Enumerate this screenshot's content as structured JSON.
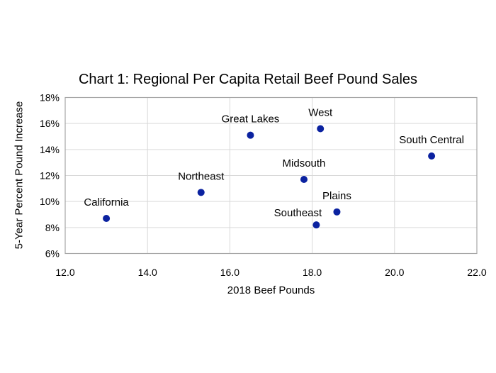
{
  "chart_data": {
    "type": "scatter",
    "title": "Chart 1: Regional Per Capita Retail Beef Pound Sales",
    "xlabel": "2018 Beef Pounds",
    "ylabel": "5-Year Percent Pound Increase",
    "xlim": [
      12,
      22
    ],
    "ylim": [
      6,
      18
    ],
    "grid": true,
    "legend": "none",
    "x_ticks": [
      {
        "v": 12,
        "label": "12.0"
      },
      {
        "v": 14,
        "label": "14.0"
      },
      {
        "v": 16,
        "label": "16.0"
      },
      {
        "v": 18,
        "label": "18.0"
      },
      {
        "v": 20,
        "label": "20.0"
      },
      {
        "v": 22,
        "label": "22.0"
      }
    ],
    "y_ticks": [
      {
        "v": 6,
        "label": "6%"
      },
      {
        "v": 8,
        "label": "8%"
      },
      {
        "v": 10,
        "label": "10%"
      },
      {
        "v": 12,
        "label": "12%"
      },
      {
        "v": 14,
        "label": "14%"
      },
      {
        "v": 16,
        "label": "16%"
      },
      {
        "v": 18,
        "label": "18%"
      }
    ],
    "points": [
      {
        "region": "California",
        "x": 13.0,
        "y": 8.7
      },
      {
        "region": "Northeast",
        "x": 15.3,
        "y": 10.7
      },
      {
        "region": "Great Lakes",
        "x": 16.5,
        "y": 15.1
      },
      {
        "region": "West",
        "x": 18.2,
        "y": 15.6
      },
      {
        "region": "Midsouth",
        "x": 17.8,
        "y": 11.7
      },
      {
        "region": "Southeast",
        "x": 18.1,
        "y": 8.2,
        "label_dx": -26,
        "label_dy": -12
      },
      {
        "region": "Plains",
        "x": 18.6,
        "y": 9.2
      },
      {
        "region": "South Central",
        "x": 20.9,
        "y": 13.5
      }
    ],
    "colors": {
      "dot": "#0b22a0",
      "gridline": "#d9d9d9",
      "plot_border": "#a6a6a6",
      "text": "#000000",
      "background": "#ffffff"
    }
  }
}
